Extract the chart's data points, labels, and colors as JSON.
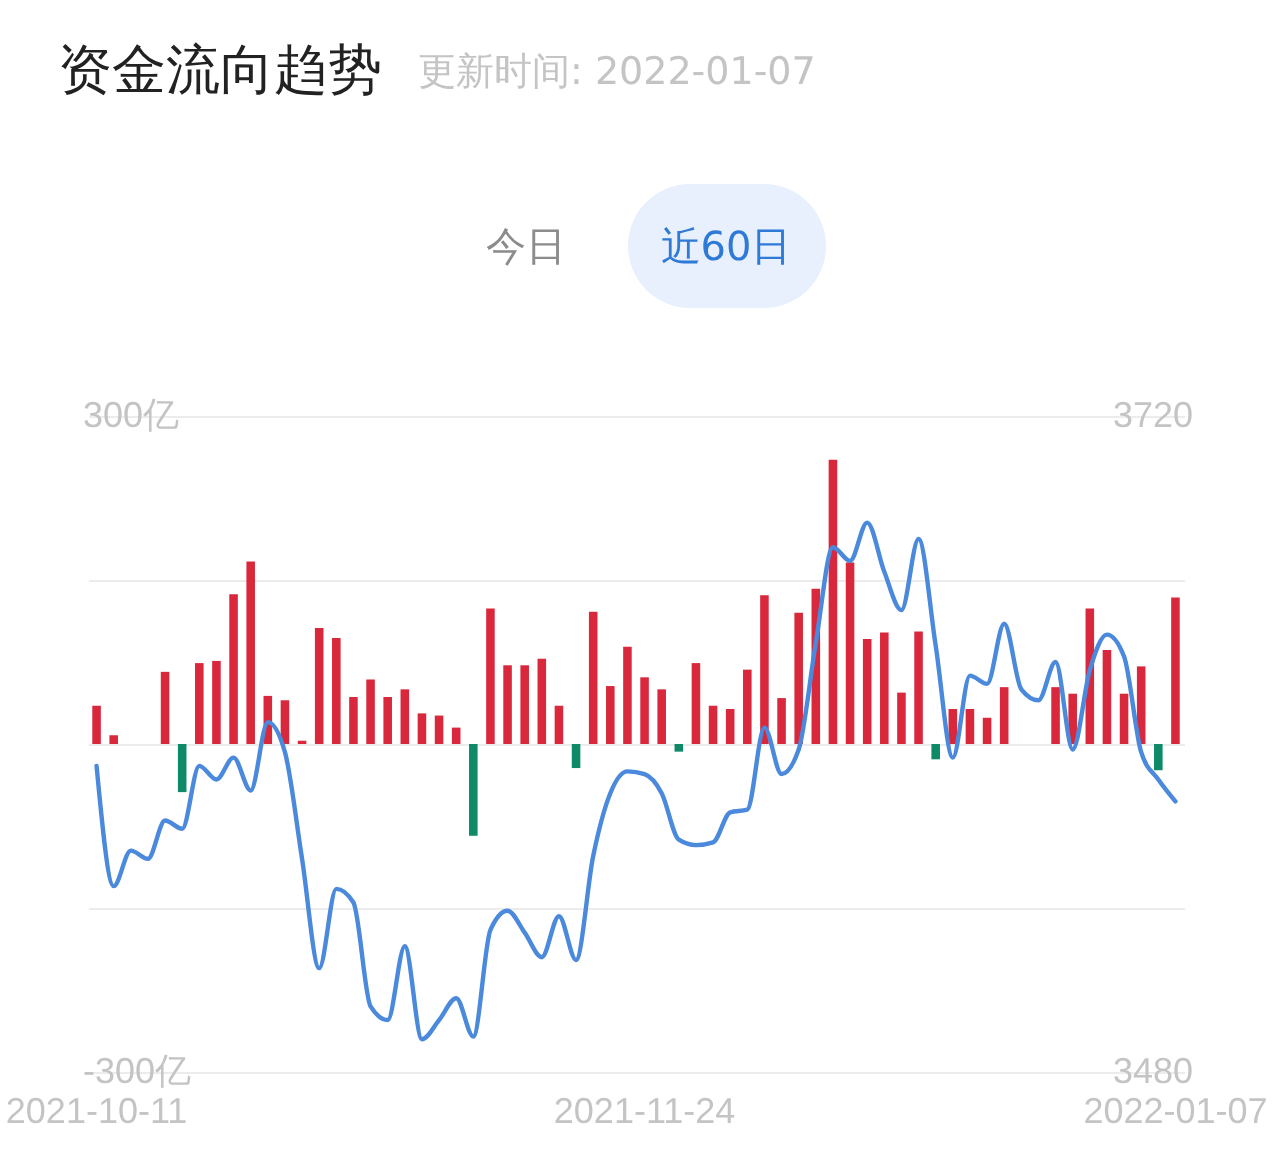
{
  "chart_data": {
    "type": "bar",
    "title": "资金流向趋势",
    "subtitle": "更新时间: 2022-01-07",
    "annotations": [
      "今日",
      "近60日"
    ],
    "categories": [
      "2021-10-11",
      null,
      null,
      null,
      null,
      null,
      null,
      null,
      null,
      null,
      null,
      null,
      null,
      null,
      null,
      null,
      null,
      null,
      null,
      null,
      null,
      null,
      null,
      null,
      null,
      null,
      null,
      null,
      null,
      null,
      null,
      null,
      "2021-11-24",
      null,
      null,
      null,
      null,
      null,
      null,
      null,
      null,
      null,
      null,
      null,
      null,
      null,
      null,
      null,
      null,
      null,
      null,
      null,
      null,
      null,
      null,
      null,
      null,
      null,
      null,
      null,
      null,
      null,
      null,
      "2022-01-07"
    ],
    "series": [
      {
        "type": "bar",
        "values": [
          35,
          8,
          null,
          null,
          66,
          -44,
          74,
          76,
          137,
          167,
          44,
          40,
          3,
          106,
          97,
          43,
          59,
          43,
          50,
          28,
          26,
          15,
          -84,
          124,
          72,
          72,
          78,
          35,
          -22,
          121,
          53,
          89,
          61,
          50,
          -7,
          74,
          35,
          32,
          68,
          136,
          42,
          120,
          142,
          260,
          166,
          96,
          102,
          47,
          103,
          -14,
          32,
          32,
          24,
          52,
          null,
          null,
          52,
          46,
          124,
          86,
          46,
          71,
          -24,
          134
        ],
        "colors": [
          "#d9283b",
          "#d9283b",
          null,
          null,
          "#d9283b",
          "#0f8a66",
          "#d9283b",
          "#d9283b",
          "#d9283b",
          "#d9283b",
          "#d9283b",
          "#d9283b",
          "#d9283b",
          "#d9283b",
          "#d9283b",
          "#d9283b",
          "#d9283b",
          "#d9283b",
          "#d9283b",
          "#d9283b",
          "#d9283b",
          "#d9283b",
          "#0f8a66",
          "#d9283b",
          "#d9283b",
          "#d9283b",
          "#d9283b",
          "#d9283b",
          "#0f8a66",
          "#d9283b",
          "#d9283b",
          "#d9283b",
          "#d9283b",
          "#d9283b",
          "#0f8a66",
          "#d9283b",
          "#d9283b",
          "#d9283b",
          "#d9283b",
          "#d9283b",
          "#d9283b",
          "#d9283b",
          "#d9283b",
          "#d9283b",
          "#d9283b",
          "#d9283b",
          "#d9283b",
          "#d9283b",
          "#d9283b",
          "#0f8a66",
          "#d9283b",
          "#d9283b",
          "#d9283b",
          "#d9283b",
          null,
          null,
          "#d9283b",
          "#d9283b",
          "#d9283b",
          "#d9283b",
          "#d9283b",
          "#d9283b",
          "#0f8a66",
          "#d9283b"
        ]
      },
      {
        "type": "line",
        "axis": "y2",
        "color": "#4a89dc",
        "values": [
          3592,
          3548,
          3561,
          3558,
          3572,
          3569,
          3592,
          3587,
          3595,
          3583,
          3608,
          3597,
          3558,
          3518,
          3547,
          3542,
          3504,
          3499,
          3526,
          3492,
          3499,
          3507,
          3493,
          3532,
          3539,
          3531,
          3522,
          3537,
          3521,
          3559,
          3582,
          3590,
          3589,
          3582,
          3565,
          3563,
          3564,
          3575,
          3576,
          3606,
          3589,
          3598,
          3637,
          3672,
          3667,
          3681,
          3663,
          3649,
          3675,
          3636,
          3595,
          3625,
          3622,
          3644,
          3620,
          3616,
          3630,
          3598,
          3627,
          3640,
          3632,
          3597,
          3587,
          3579
        ]
      }
    ],
    "ylim": [
      -300,
      300
    ],
    "yticks": [
      {
        "value": 300,
        "label": "300亿"
      },
      {
        "value": 150,
        "label": null
      },
      {
        "value": 0,
        "label": null
      },
      {
        "value": -150,
        "label": null
      },
      {
        "value": -300,
        "label": "-300亿"
      }
    ],
    "y2lim": [
      3480,
      3720
    ],
    "y2ticks": [
      3720,
      {
        "value": 3660,
        "label": null
      },
      {
        "value": 3600,
        "label": null
      },
      {
        "value": 3540,
        "label": null
      },
      3480
    ],
    "grid": "y"
  }
}
